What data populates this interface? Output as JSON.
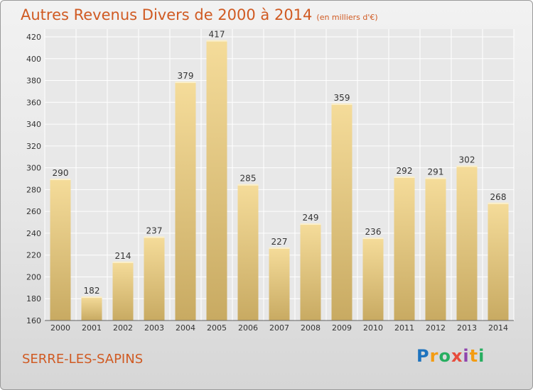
{
  "title": "Autres Revenus Divers de 2000 à 2014",
  "unit": "(en milliers d'€)",
  "city": "SERRE-LES-SAPINS",
  "logo": {
    "letters": [
      "P",
      "r",
      "o",
      "x",
      "i",
      "t",
      "i"
    ],
    "colors": [
      "#1e73be",
      "#f39c12",
      "#27ae60",
      "#e74c3c",
      "#8e44ad",
      "#f39c12",
      "#27ae60"
    ]
  },
  "colors": {
    "title": "#d05a22",
    "bar_top": "#f5dc9a",
    "bar_bottom": "#c8aa62",
    "grid": "#ffffff"
  },
  "chart_data": {
    "type": "bar",
    "categories": [
      "2000",
      "2001",
      "2002",
      "2003",
      "2004",
      "2005",
      "2006",
      "2007",
      "2008",
      "2009",
      "2010",
      "2011",
      "2012",
      "2013",
      "2014"
    ],
    "values": [
      290,
      182,
      214,
      237,
      379,
      417,
      285,
      227,
      249,
      359,
      236,
      292,
      291,
      302,
      268
    ],
    "ylim": [
      160,
      420
    ],
    "yticks": [
      160,
      180,
      200,
      220,
      240,
      260,
      280,
      300,
      320,
      340,
      360,
      380,
      400,
      420
    ],
    "grid": true,
    "data_labels": true
  }
}
